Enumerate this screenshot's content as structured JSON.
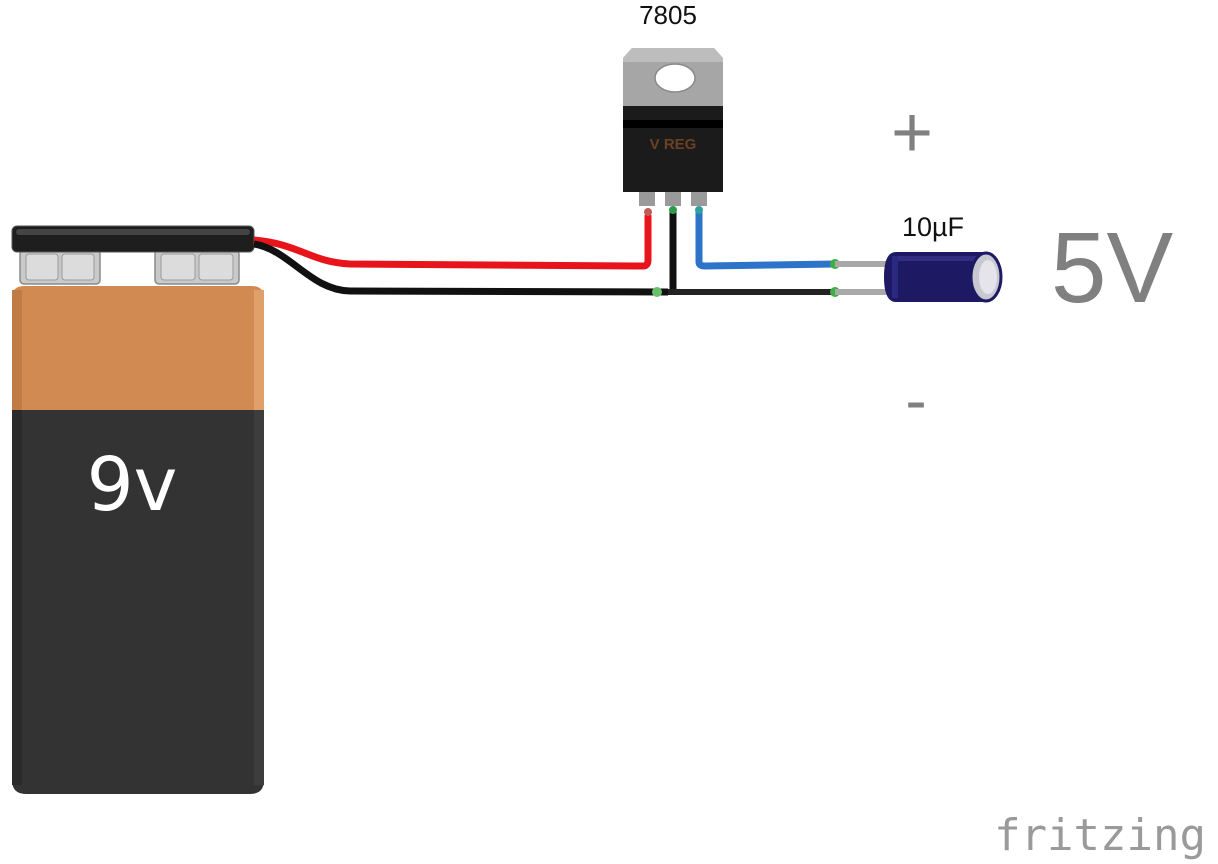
{
  "regulator": {
    "part_label": "7805",
    "body_text": "V REG"
  },
  "capacitor": {
    "value_label": "10µF"
  },
  "battery": {
    "voltage_label": "9v"
  },
  "output": {
    "voltage_label": "5V",
    "plus_label": "+",
    "minus_label": "-"
  },
  "branding": {
    "name": "fritzing"
  },
  "colors": {
    "wire_red": "#e8141b",
    "wire_black": "#111111",
    "wire_blue": "#2d74c9",
    "battery_copper": "#d08a52",
    "battery_body": "#333333",
    "capacitor_body": "#1d1a63",
    "label_gray": "#808080"
  }
}
